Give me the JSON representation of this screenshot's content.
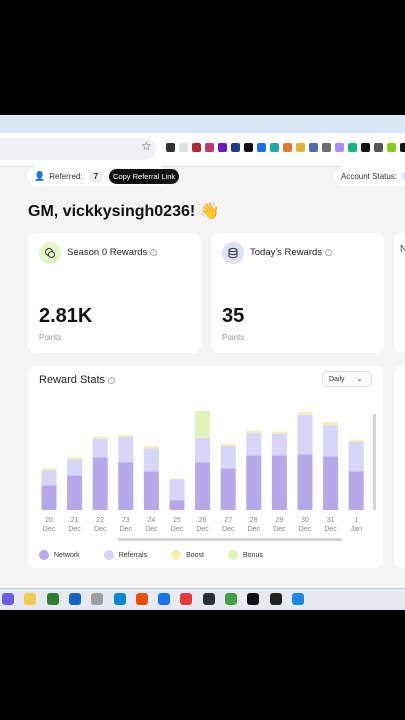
{
  "browser": {
    "star_glyph": "☆",
    "extension_colors": [
      "#333333",
      "#e0e0e0",
      "#b3262d",
      "#c0396b",
      "#6a1bbf",
      "#1e3a8a",
      "#111111",
      "#1a73e8",
      "#22a8a8",
      "#e0792b",
      "#e8b13a",
      "#4b6cb7",
      "#6c6c6c",
      "#a78bfa",
      "#10b981",
      "#111111",
      "#555555",
      "#84cc16",
      "#111111",
      "#111111",
      "#222222"
    ]
  },
  "header": {
    "referred_label": "Referred:",
    "referred_count": "7",
    "copy_button": "Copy Referral Link",
    "account_status_label": "Account Status:",
    "greeting": "GM, vickkysingh0236! 👋"
  },
  "cards": [
    {
      "title": "Season 0 Rewards",
      "value": "2.81K",
      "unit": "Points",
      "icon": "coins-icon"
    },
    {
      "title": "Today's Rewards",
      "value": "35",
      "unit": "Points",
      "icon": "database-icon"
    }
  ],
  "third_card_letter": "N",
  "chart_panel": {
    "title": "Reward Stats",
    "period": "Daily"
  },
  "chart_data": {
    "type": "bar",
    "stacked": true,
    "categories": [
      "20 Dec",
      "21 Dec",
      "22 Dec",
      "23 Dec",
      "24 Dec",
      "25 Dec",
      "26 Dec",
      "27 Dec",
      "28 Dec",
      "29 Dec",
      "30 Dec",
      "31 Dec",
      "1 Jan"
    ],
    "tick_top": [
      "20",
      "21",
      "22",
      "23",
      "24",
      "25",
      "26",
      "27",
      "28",
      "29",
      "30",
      "31",
      "1"
    ],
    "tick_bottom": [
      "Dec",
      "Dec",
      "Dec",
      "Dec",
      "Dec",
      "Dec",
      "Dec",
      "Dec",
      "Dec",
      "Dec",
      "Dec",
      "Dec",
      "Jan"
    ],
    "series": [
      {
        "name": "Network",
        "color": "#b7a8ea",
        "values": [
          25,
          35,
          53,
          48,
          39,
          10,
          48,
          42,
          55,
          55,
          56,
          54,
          39
        ]
      },
      {
        "name": "Referrals",
        "color": "#d7d6f6",
        "values": [
          15,
          16,
          19,
          26,
          23,
          21,
          25,
          23,
          23,
          22,
          40,
          32,
          30
        ]
      },
      {
        "name": "Boost",
        "color": "#f3efb0",
        "values": [
          2,
          2,
          2,
          2,
          2,
          1,
          1,
          2,
          2,
          2,
          3,
          3,
          2
        ]
      },
      {
        "name": "Bonus",
        "color": "#e1f3b8",
        "values": [
          0,
          0,
          0,
          0,
          0,
          0,
          26,
          0,
          0,
          0,
          0,
          0,
          0
        ]
      }
    ],
    "ylim": [
      0,
      105
    ],
    "grid": false,
    "legend": "bottom-left"
  },
  "taskbar": {
    "icon_colors": [
      "#6b5ce7",
      "#f2c94c",
      "#2e7d32",
      "#1565c0",
      "#9e9e9e",
      "#0288d1",
      "#e65100",
      "#1a73e8",
      "#e53935",
      "#263238",
      "#43a047",
      "#111111",
      "#212121",
      "#1e88e5"
    ]
  }
}
